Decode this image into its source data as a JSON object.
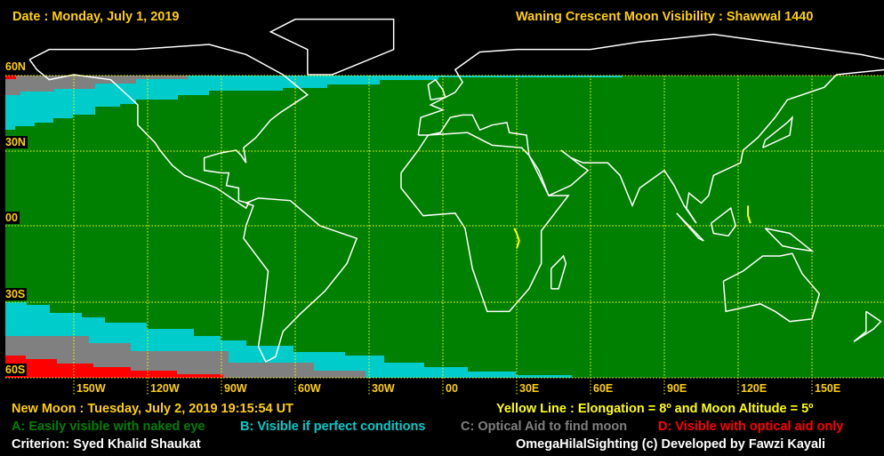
{
  "header": {
    "date": "Date : Monday, July 1, 2019",
    "title": "Waning Crescent Moon Visibility : Shawwal 1440"
  },
  "map": {
    "lat_labels": [
      "60N",
      "30N",
      "00",
      "30S",
      "60S"
    ],
    "lon_labels": [
      "150W",
      "120W",
      "90W",
      "60W",
      "30W",
      "00",
      "30E",
      "60E",
      "90E",
      "120E",
      "150E"
    ],
    "zones": {
      "A": "#008000",
      "B": "#00cccc",
      "C": "#808080",
      "D": "#ff0000"
    },
    "grid_color": "#ffff00",
    "coast_color": "#ffffff"
  },
  "footer": {
    "new_moon": "New Moon : Tuesday, July 2, 2019  19:15:54  UT",
    "yellow_line": "Yellow Line : Elongation = 8º  and Moon Altitude = 5º",
    "legend_a": "A: Easily visible with naked eye",
    "legend_b": "B: Visible if perfect conditions",
    "legend_c": "C: Optical Aid to find moon",
    "legend_d": "D: Visible with optical aid only",
    "criterion": "Criterion: Syed Khalid Shaukat",
    "credit": "OmegaHilalSighting  (c)  Developed by Fawzi Kayali"
  }
}
